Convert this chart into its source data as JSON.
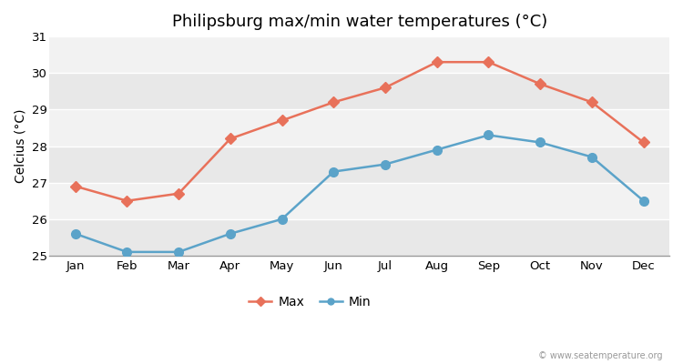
{
  "title": "Philipsburg max/min water temperatures (°C)",
  "xlabel": "",
  "ylabel": "Celcius (°C)",
  "months": [
    "Jan",
    "Feb",
    "Mar",
    "Apr",
    "May",
    "Jun",
    "Jul",
    "Aug",
    "Sep",
    "Oct",
    "Nov",
    "Dec"
  ],
  "max_temps": [
    26.9,
    26.5,
    26.7,
    28.2,
    28.7,
    29.2,
    29.6,
    30.3,
    30.3,
    29.7,
    29.2,
    28.1
  ],
  "min_temps": [
    25.6,
    25.1,
    25.1,
    25.6,
    26.0,
    27.3,
    27.5,
    27.9,
    28.3,
    28.1,
    27.7,
    26.5
  ],
  "max_color": "#e8715a",
  "min_color": "#5ba3c9",
  "fig_bg_color": "#ffffff",
  "plot_bg_color": "#e8e8e8",
  "band_color_light": "#f0f0f0",
  "band_color_dark": "#e0e0e0",
  "grid_color": "#ffffff",
  "ylim": [
    25.0,
    31.0
  ],
  "yticks": [
    25,
    26,
    27,
    28,
    29,
    30,
    31
  ],
  "legend_labels": [
    "Max",
    "Min"
  ],
  "watermark": "© www.seatemperature.org",
  "title_fontsize": 13,
  "axis_label_fontsize": 10,
  "tick_fontsize": 9.5
}
